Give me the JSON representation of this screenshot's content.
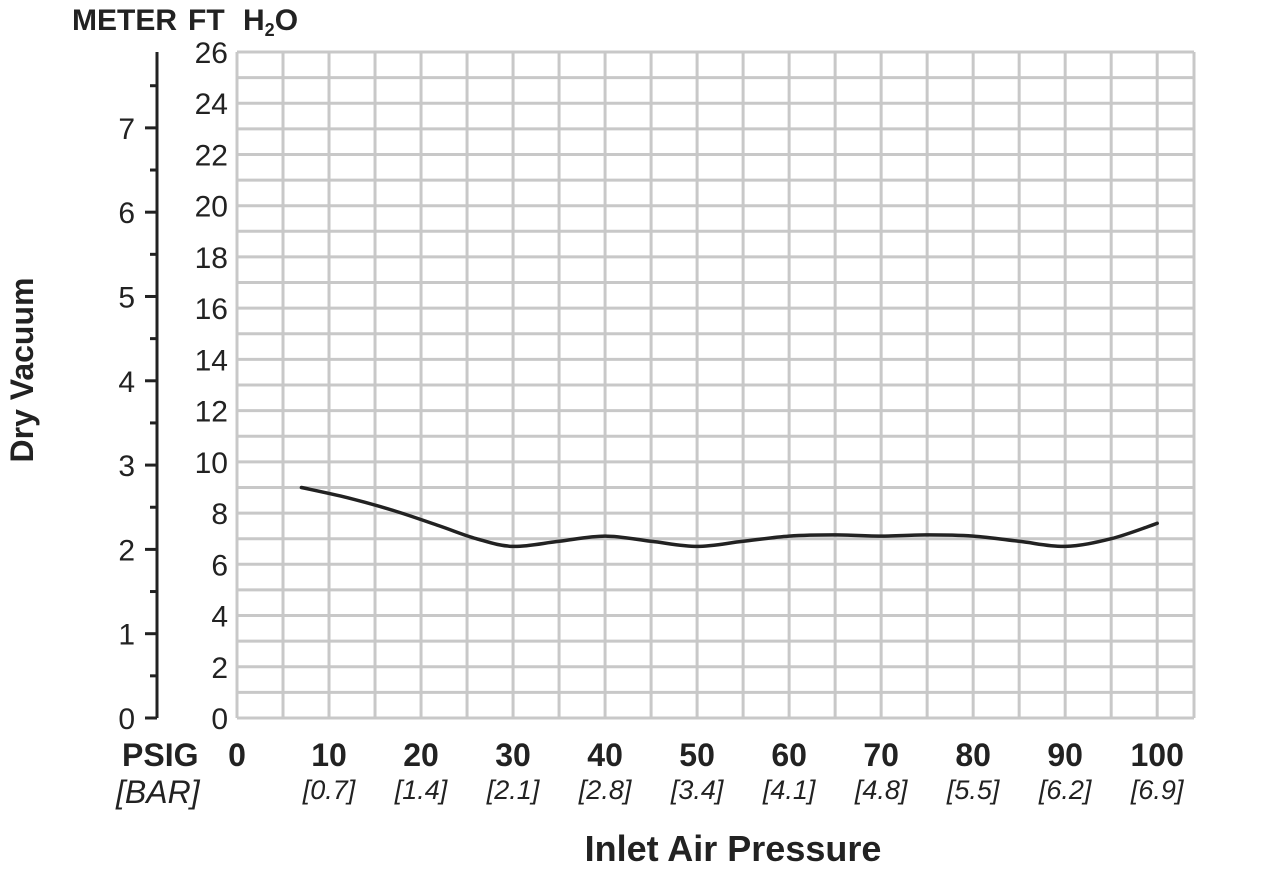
{
  "chart_data": {
    "type": "line",
    "title": "",
    "xlabel": "Inlet Air Pressure",
    "ylabel": "Dry Vacuum",
    "x_unit_label": "PSIG",
    "x_secondary_unit_label": "[BAR]",
    "y_unit_header": {
      "meter": "METER",
      "ft": "FT",
      "h2o_prefix": "H",
      "h2o_sub": "2",
      "h2o_suffix": "O"
    },
    "xlim": [
      0,
      104
    ],
    "ylim_ft": [
      0,
      26
    ],
    "ylim_meter": [
      0,
      7.9
    ],
    "x_ticks": [
      {
        "value": 0,
        "label": "0",
        "bar": ""
      },
      {
        "value": 10,
        "label": "10",
        "bar": "[0.7]"
      },
      {
        "value": 20,
        "label": "20",
        "bar": "[1.4]"
      },
      {
        "value": 30,
        "label": "30",
        "bar": "[2.1]"
      },
      {
        "value": 40,
        "label": "40",
        "bar": "[2.8]"
      },
      {
        "value": 50,
        "label": "50",
        "bar": "[3.4]"
      },
      {
        "value": 60,
        "label": "60",
        "bar": "[4.1]"
      },
      {
        "value": 70,
        "label": "70",
        "bar": "[4.8]"
      },
      {
        "value": 80,
        "label": "80",
        "bar": "[5.5]"
      },
      {
        "value": 90,
        "label": "90",
        "bar": "[6.2]"
      },
      {
        "value": 100,
        "label": "100",
        "bar": "[6.9]"
      }
    ],
    "y_ticks_ft": [
      "0",
      "2",
      "4",
      "6",
      "8",
      "10",
      "12",
      "14",
      "16",
      "18",
      "20",
      "22",
      "24",
      "26"
    ],
    "y_ticks_meter": [
      "0",
      "1",
      "2",
      "3",
      "4",
      "5",
      "6",
      "7"
    ],
    "grid": true,
    "series": [
      {
        "x": [
          7,
          12,
          17,
          22,
          26,
          30,
          35,
          40,
          45,
          50,
          55,
          60,
          65,
          70,
          75,
          80,
          85,
          90,
          95,
          100
        ],
        "y": [
          9.0,
          8.6,
          8.1,
          7.5,
          7.0,
          6.7,
          6.9,
          7.1,
          6.9,
          6.7,
          6.9,
          7.1,
          7.15,
          7.1,
          7.15,
          7.1,
          6.9,
          6.7,
          7.0,
          7.6
        ]
      }
    ],
    "colors": {
      "line": "#222222",
      "grid": "#c8c8c8",
      "axis": "#222222"
    }
  }
}
